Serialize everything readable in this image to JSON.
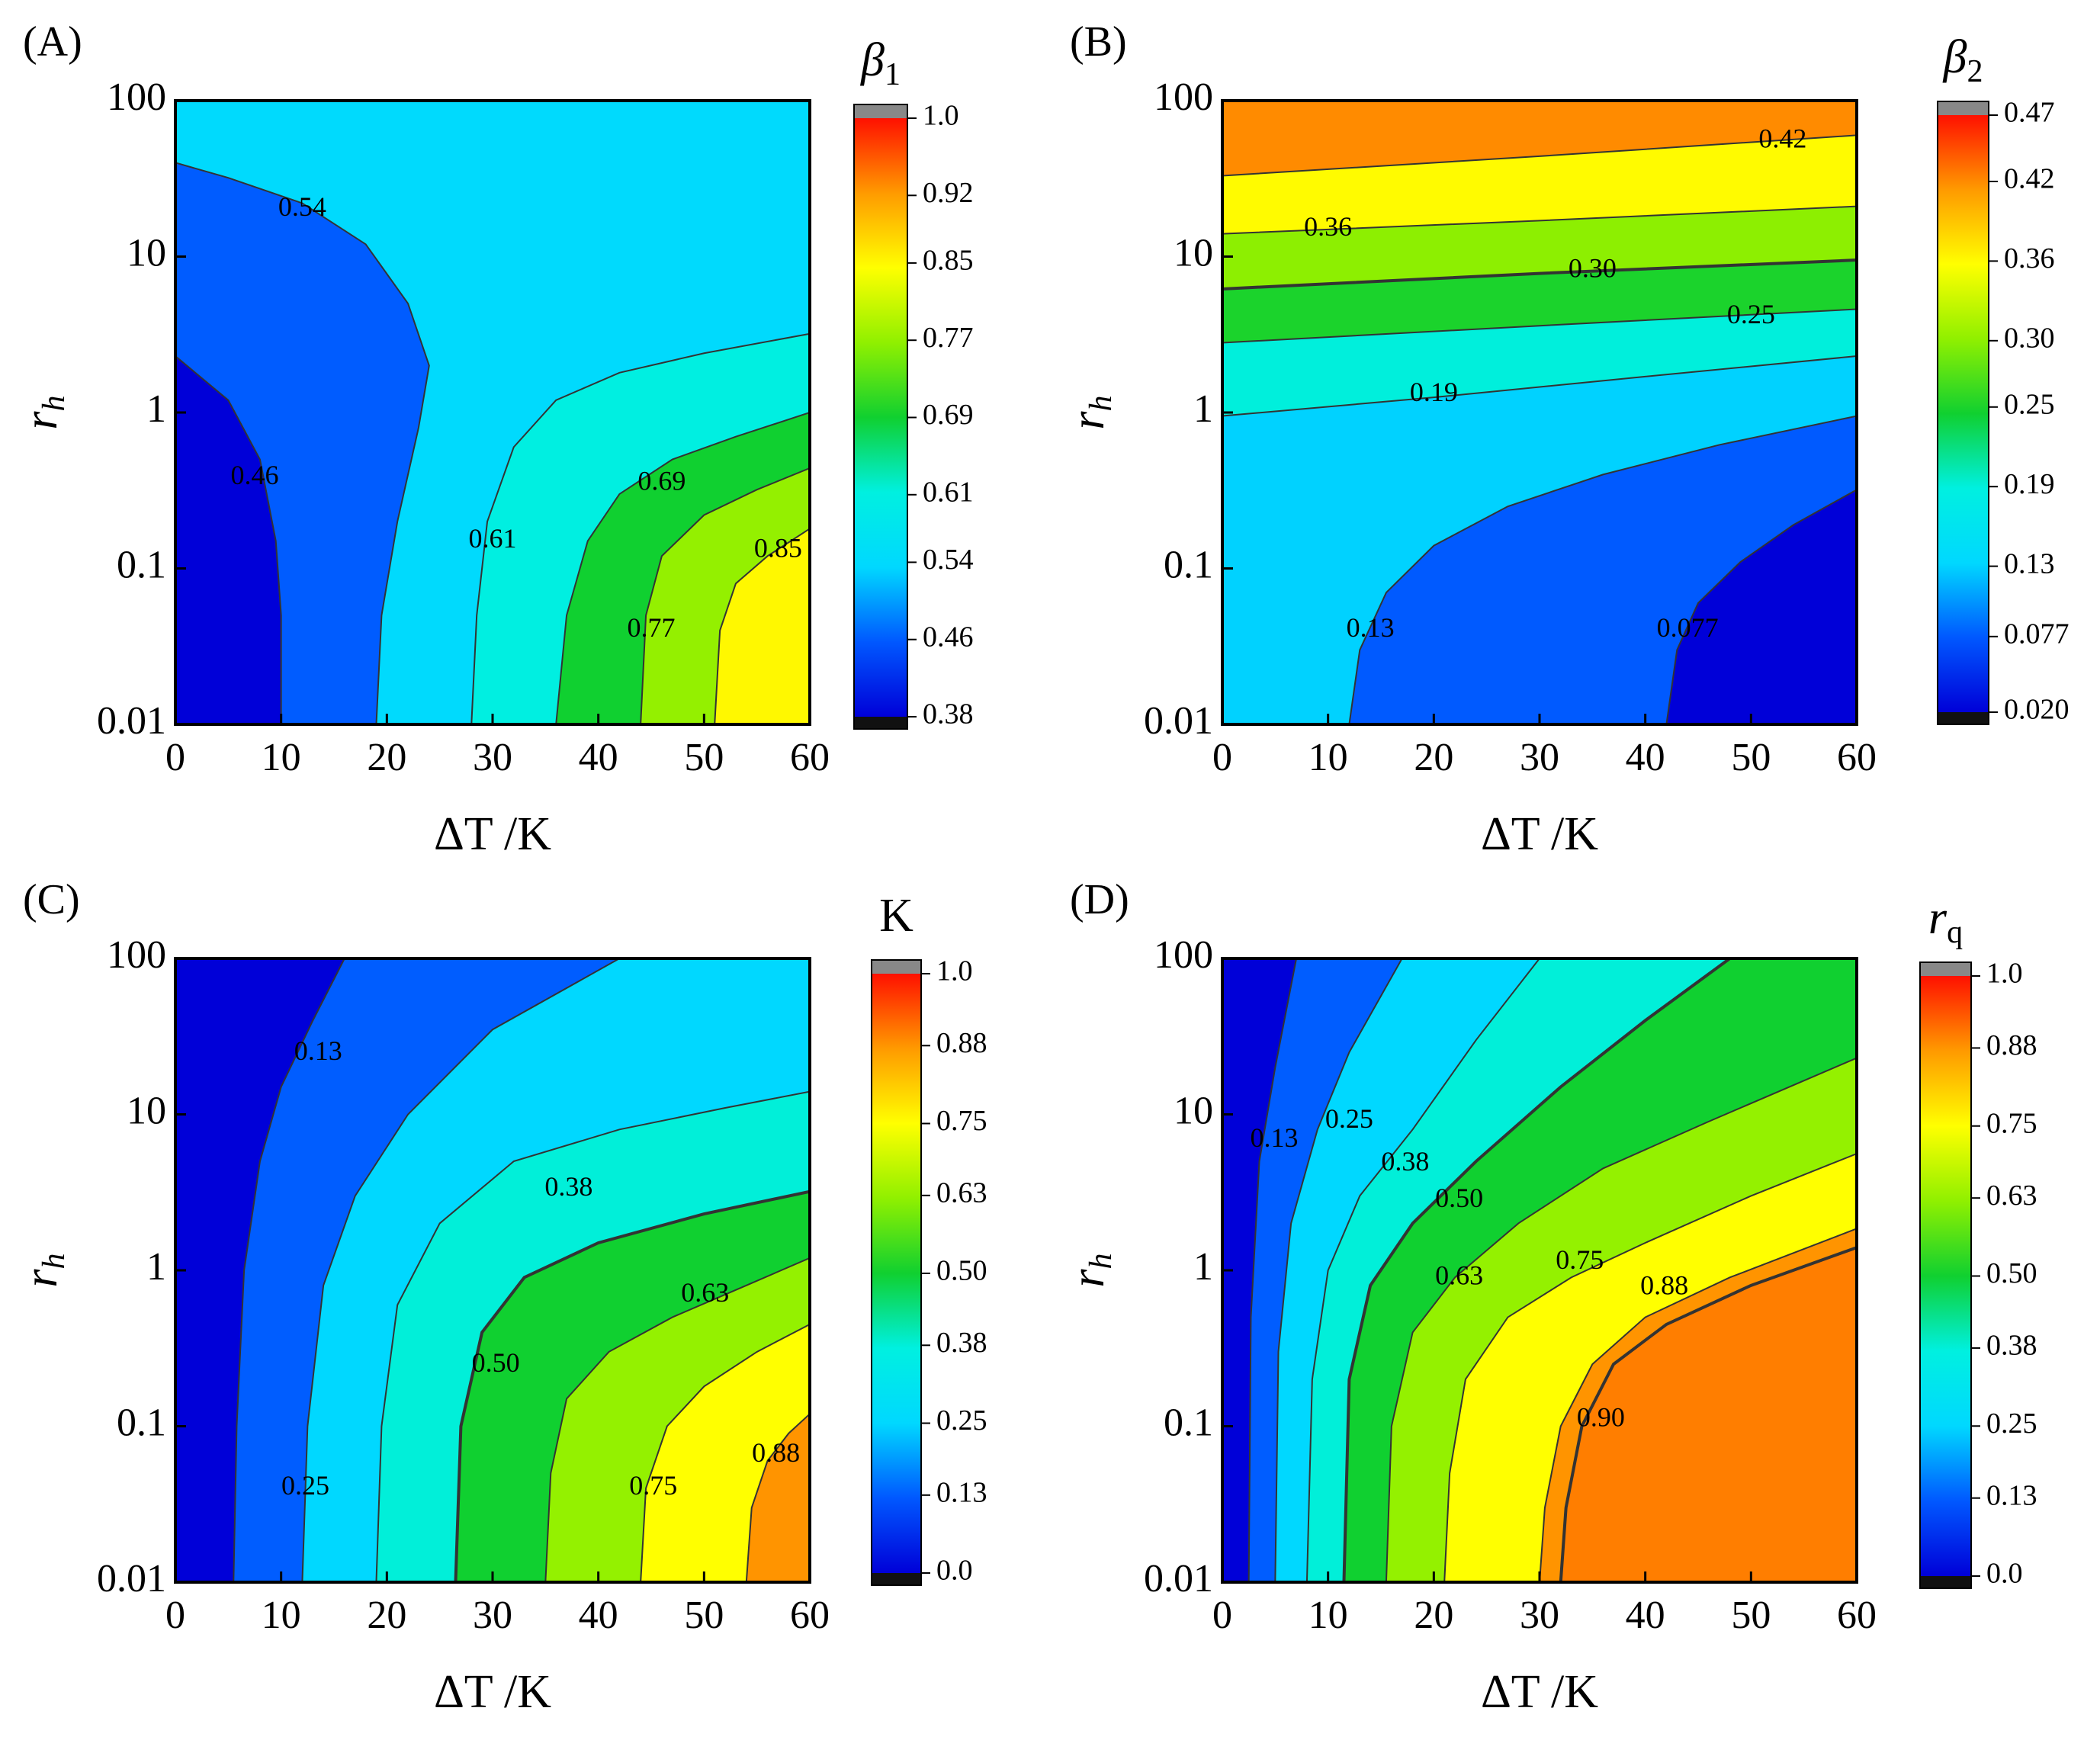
{
  "chart_data": [
    {
      "type": "contour",
      "panel": "(A)",
      "xlabel": "ΔT /K",
      "ylabel": "r",
      "ylabel_sub": "h",
      "colorbar_title": "β",
      "colorbar_title_sub": "1",
      "xlim": [
        0,
        60
      ],
      "xticks": [
        0,
        10,
        20,
        30,
        40,
        50,
        60
      ],
      "ylim": [
        0.01,
        100
      ],
      "yticks": [
        0.01,
        0.1,
        1,
        10,
        100
      ],
      "yscale": "log",
      "clim": [
        0.38,
        1
      ],
      "cticks": [
        0.38,
        0.46,
        0.54,
        0.61,
        0.69,
        0.77,
        0.85,
        0.92,
        {
          "value": 1,
          "label": "1.0"
        }
      ],
      "colormap": [
        "#0000d8",
        "#0058ff",
        "#00d8ff",
        "#00f0e0",
        "#10d030",
        "#90f000",
        "#ffff00",
        "#ff9a00",
        "#ff1000"
      ],
      "contours": [
        {
          "level": 0.46,
          "x": [
            10,
            10,
            9.5,
            8,
            5,
            0
          ],
          "y": [
            0.01,
            0.05,
            0.15,
            0.5,
            1.2,
            2.3
          ],
          "label_xy": [
            7.5,
            0.38
          ]
        },
        {
          "level": 0.54,
          "x": [
            19,
            19.5,
            21,
            23,
            24,
            22,
            18,
            12,
            5,
            0
          ],
          "y": [
            0.01,
            0.05,
            0.2,
            0.8,
            2,
            5,
            12,
            22,
            32,
            40
          ],
          "label_xy": [
            12,
            20
          ]
        },
        {
          "level": 0.61,
          "x": [
            28,
            28.5,
            29.5,
            32,
            36,
            42,
            50,
            60
          ],
          "y": [
            0.01,
            0.05,
            0.2,
            0.6,
            1.2,
            1.8,
            2.4,
            3.2
          ],
          "label_xy": [
            30,
            0.15
          ]
        },
        {
          "level": 0.69,
          "x": [
            36,
            37,
            39,
            42,
            47,
            53,
            60
          ],
          "y": [
            0.01,
            0.05,
            0.15,
            0.3,
            0.5,
            0.7,
            1.0
          ],
          "label_xy": [
            46,
            0.35
          ]
        },
        {
          "level": 0.77,
          "x": [
            44,
            44.5,
            46,
            50,
            55,
            60
          ],
          "y": [
            0.01,
            0.05,
            0.12,
            0.22,
            0.32,
            0.44
          ],
          "label_xy": [
            45,
            0.04
          ]
        },
        {
          "level": 0.85,
          "x": [
            51,
            51.5,
            53,
            56,
            60
          ],
          "y": [
            0.01,
            0.04,
            0.08,
            0.12,
            0.18
          ],
          "label_xy": [
            57,
            0.13
          ]
        }
      ]
    },
    {
      "type": "contour",
      "panel": "(B)",
      "xlabel": "ΔT /K",
      "ylabel": "r",
      "ylabel_sub": "h",
      "colorbar_title": "β",
      "colorbar_title_sub": "2",
      "xlim": [
        0,
        60
      ],
      "xticks": [
        0,
        10,
        20,
        30,
        40,
        50,
        60
      ],
      "ylim": [
        0.01,
        100
      ],
      "yticks": [
        0.01,
        0.1,
        1,
        10,
        100
      ],
      "yscale": "log",
      "clim": [
        0.02,
        0.47
      ],
      "cticks": [
        {
          "value": 0.02,
          "label": "0.020"
        },
        0.077,
        0.13,
        0.19,
        0.25,
        {
          "value": 0.3,
          "label": "0.30"
        },
        0.36,
        0.42,
        0.47
      ],
      "colormap": [
        "#0000d8",
        "#0058ff",
        "#00d8ff",
        "#00f0e0",
        "#10d030",
        "#90f000",
        "#ffff00",
        "#ff9a00",
        "#ff1000"
      ],
      "contours": [
        {
          "level": 0.077,
          "x": [
            60,
            54,
            49,
            45,
            43,
            42
          ],
          "y": [
            0.32,
            0.19,
            0.11,
            0.06,
            0.03,
            0.01
          ],
          "label_xy": [
            44,
            0.04
          ]
        },
        {
          "level": 0.13,
          "x": [
            60,
            47,
            36,
            27,
            20,
            15.5,
            13,
            12
          ],
          "y": [
            0.95,
            0.62,
            0.4,
            0.25,
            0.14,
            0.07,
            0.03,
            0.01
          ],
          "label_xy": [
            14,
            0.04
          ]
        },
        {
          "level": 0.19,
          "x": [
            60,
            40,
            20,
            0
          ],
          "y": [
            2.3,
            1.7,
            1.25,
            0.95
          ],
          "label_xy": [
            20,
            1.3
          ]
        },
        {
          "level": 0.25,
          "x": [
            60,
            30,
            0
          ],
          "y": [
            4.6,
            3.6,
            2.8
          ],
          "label_xy": [
            50,
            4.1
          ]
        },
        {
          "level": 0.3,
          "level_label": "0.30",
          "x": [
            60,
            30,
            0
          ],
          "y": [
            9.5,
            7.8,
            6.2
          ],
          "label_xy": [
            35,
            8.1
          ]
        },
        {
          "level": 0.36,
          "x": [
            60,
            30,
            0
          ],
          "y": [
            21,
            17,
            14
          ],
          "label_xy": [
            10,
            15
          ]
        },
        {
          "level": 0.42,
          "x": [
            60,
            30,
            0
          ],
          "y": [
            60,
            44,
            33
          ],
          "label_xy": [
            53,
            55
          ]
        }
      ]
    },
    {
      "type": "contour",
      "panel": "(C)",
      "xlabel": "ΔT /K",
      "ylabel": "r",
      "ylabel_sub": "h",
      "colorbar_title": "K",
      "xlim": [
        0,
        60
      ],
      "xticks": [
        0,
        10,
        20,
        30,
        40,
        50,
        60
      ],
      "ylim": [
        0.01,
        100
      ],
      "yticks": [
        0.01,
        0.1,
        1,
        10,
        100
      ],
      "yscale": "log",
      "clim": [
        0,
        1
      ],
      "cticks": [
        {
          "value": 0,
          "label": "0.0"
        },
        0.13,
        0.25,
        0.38,
        {
          "value": 0.5,
          "label": "0.50"
        },
        0.63,
        0.75,
        0.88,
        {
          "value": 1,
          "label": "1.0"
        }
      ],
      "colormap": [
        "#0000d8",
        "#0058ff",
        "#00d8ff",
        "#00f0e0",
        "#10d030",
        "#90f000",
        "#ffff00",
        "#ff9a00",
        "#ff1000"
      ],
      "contours": [
        {
          "level": 0.13,
          "x": [
            5.5,
            5.8,
            6.5,
            8,
            10,
            13,
            16
          ],
          "y": [
            0.01,
            0.1,
            1,
            5,
            15,
            40,
            100
          ],
          "label_xy": [
            13.5,
            24.5
          ]
        },
        {
          "level": 0.25,
          "x": [
            12,
            12.5,
            14,
            17,
            22,
            30,
            42
          ],
          "y": [
            0.01,
            0.1,
            0.8,
            3,
            10,
            35,
            100
          ],
          "label_xy": [
            12.3,
            0.04
          ]
        },
        {
          "level": 0.38,
          "x": [
            19,
            19.5,
            21,
            25,
            32,
            42,
            52,
            60
          ],
          "y": [
            0.01,
            0.1,
            0.6,
            2,
            5,
            8,
            11,
            14
          ],
          "label_xy": [
            37.2,
            3.3
          ]
        },
        {
          "level": 0.5,
          "level_label": "0.50",
          "x": [
            26.5,
            27,
            29,
            33,
            40,
            50,
            60
          ],
          "y": [
            0.01,
            0.1,
            0.4,
            0.9,
            1.5,
            2.3,
            3.2
          ],
          "label_xy": [
            30.3,
            0.245
          ]
        },
        {
          "level": 0.63,
          "x": [
            35,
            35.5,
            37,
            41,
            47,
            54,
            60
          ],
          "y": [
            0.01,
            0.05,
            0.15,
            0.3,
            0.5,
            0.8,
            1.2
          ],
          "label_xy": [
            50.1,
            0.69
          ]
        },
        {
          "level": 0.75,
          "x": [
            44,
            44.5,
            46.5,
            50,
            55,
            60
          ],
          "y": [
            0.01,
            0.04,
            0.1,
            0.18,
            0.3,
            0.45
          ],
          "label_xy": [
            45.2,
            0.04
          ]
        },
        {
          "level": 0.88,
          "x": [
            54,
            54.5,
            56,
            58,
            60
          ],
          "y": [
            0.01,
            0.03,
            0.06,
            0.09,
            0.12
          ],
          "label_xy": [
            56.8,
            0.065
          ]
        }
      ]
    },
    {
      "type": "contour",
      "panel": "(D)",
      "xlabel": "ΔT /K",
      "ylabel": "r",
      "ylabel_sub": "h",
      "colorbar_title": "r",
      "colorbar_title_sub": "q",
      "xlim": [
        0,
        60
      ],
      "xticks": [
        0,
        10,
        20,
        30,
        40,
        50,
        60
      ],
      "ylim": [
        0.01,
        100
      ],
      "yticks": [
        0.01,
        0.1,
        1,
        10,
        100
      ],
      "yscale": "log",
      "clim": [
        0,
        1
      ],
      "cticks": [
        {
          "value": 0,
          "label": "0.0"
        },
        0.13,
        0.25,
        0.38,
        {
          "value": 0.5,
          "label": "0.50"
        },
        0.63,
        0.75,
        0.88,
        {
          "value": 1,
          "label": "1.0"
        }
      ],
      "colormap": [
        "#0000d8",
        "#0058ff",
        "#00d8ff",
        "#00f0e0",
        "#10d030",
        "#90f000",
        "#ffff00",
        "#ff9a00",
        "#ff1000"
      ],
      "contours": [
        {
          "level": 0.13,
          "x": [
            2.5,
            2.7,
            3.5,
            5,
            7
          ],
          "y": [
            0.01,
            0.5,
            5,
            20,
            100
          ],
          "label_xy": [
            4.9,
            6.8
          ]
        },
        {
          "level": 0.25,
          "x": [
            5,
            5.3,
            6.5,
            9,
            12,
            17
          ],
          "y": [
            0.01,
            0.3,
            2,
            8,
            25,
            100
          ],
          "label_xy": [
            12,
            9
          ]
        },
        {
          "level": 0.38,
          "x": [
            8,
            8.5,
            10,
            13,
            18,
            24,
            30
          ],
          "y": [
            0.01,
            0.2,
            1,
            3,
            8,
            30,
            100
          ],
          "label_xy": [
            17.3,
            4.8
          ]
        },
        {
          "level": 0.5,
          "level_label": "0.50",
          "x": [
            11.5,
            12,
            14,
            18,
            24,
            32,
            40,
            48
          ],
          "y": [
            0.01,
            0.2,
            0.8,
            2,
            5,
            15,
            40,
            100
          ],
          "label_xy": [
            22.4,
            2.8
          ]
        },
        {
          "level": 0.63,
          "x": [
            15.5,
            16,
            18,
            22,
            28,
            36,
            46,
            60
          ],
          "y": [
            0.01,
            0.1,
            0.4,
            0.9,
            2,
            4.5,
            9,
            23
          ],
          "label_xy": [
            22.4,
            0.89
          ]
        },
        {
          "level": 0.75,
          "x": [
            21,
            21.5,
            23,
            27,
            33,
            40,
            50,
            60
          ],
          "y": [
            0.01,
            0.05,
            0.2,
            0.5,
            0.9,
            1.5,
            3,
            5.6
          ],
          "label_xy": [
            33.8,
            1.12
          ]
        },
        {
          "level": 0.88,
          "x": [
            30,
            30.5,
            32,
            35,
            40,
            48,
            60
          ],
          "y": [
            0.01,
            0.03,
            0.1,
            0.25,
            0.5,
            0.9,
            1.85
          ],
          "label_xy": [
            41.8,
            0.77
          ]
        },
        {
          "level": 0.9,
          "level_label": "0.90",
          "x": [
            32,
            32.5,
            34,
            37,
            42,
            50,
            60
          ],
          "y": [
            0.01,
            0.03,
            0.1,
            0.25,
            0.45,
            0.8,
            1.4
          ],
          "label_xy": [
            35.8,
            0.11
          ]
        }
      ]
    }
  ]
}
